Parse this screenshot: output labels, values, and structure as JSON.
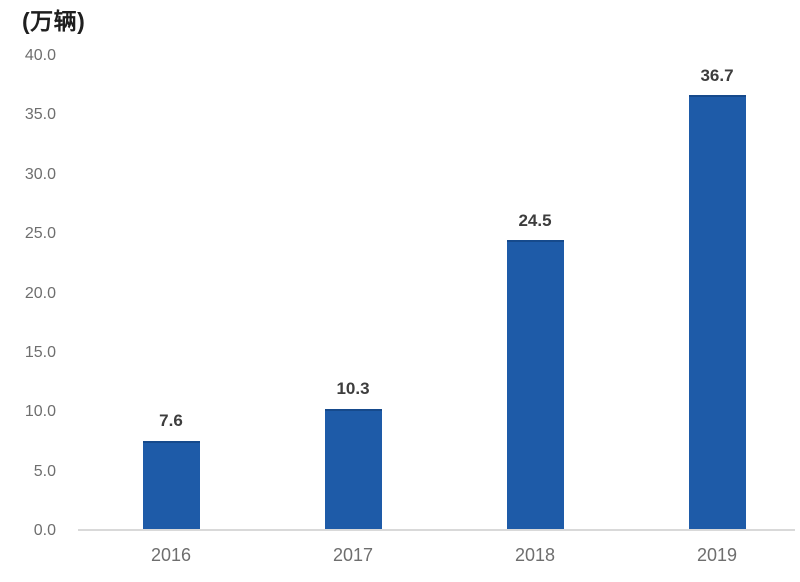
{
  "chart_data": {
    "type": "bar",
    "title": "(万辆)",
    "categories": [
      "2016",
      "2017",
      "2018",
      "2019"
    ],
    "values": [
      7.6,
      10.3,
      24.5,
      36.7
    ],
    "data_labels": [
      "7.6",
      "10.3",
      "24.5",
      "36.7"
    ],
    "xlabel": "",
    "ylabel": "(万辆)",
    "ylim": [
      0,
      40
    ],
    "yticks": [
      0,
      5,
      10,
      15,
      20,
      25,
      30,
      35,
      40
    ],
    "ytick_labels": [
      "0.0",
      "5.0",
      "10.0",
      "15.0",
      "20.0",
      "25.0",
      "30.0",
      "35.0",
      "40.0"
    ],
    "grid": false,
    "legend": false,
    "bar_color": "#1e5ba8",
    "bar_edge_color": "#164a8c",
    "axis_line_color": "#d9d9d9",
    "tick_label_color": "#6e6e6e",
    "data_label_color": "#3d3d3d",
    "title_color": "#1f1f1f"
  }
}
